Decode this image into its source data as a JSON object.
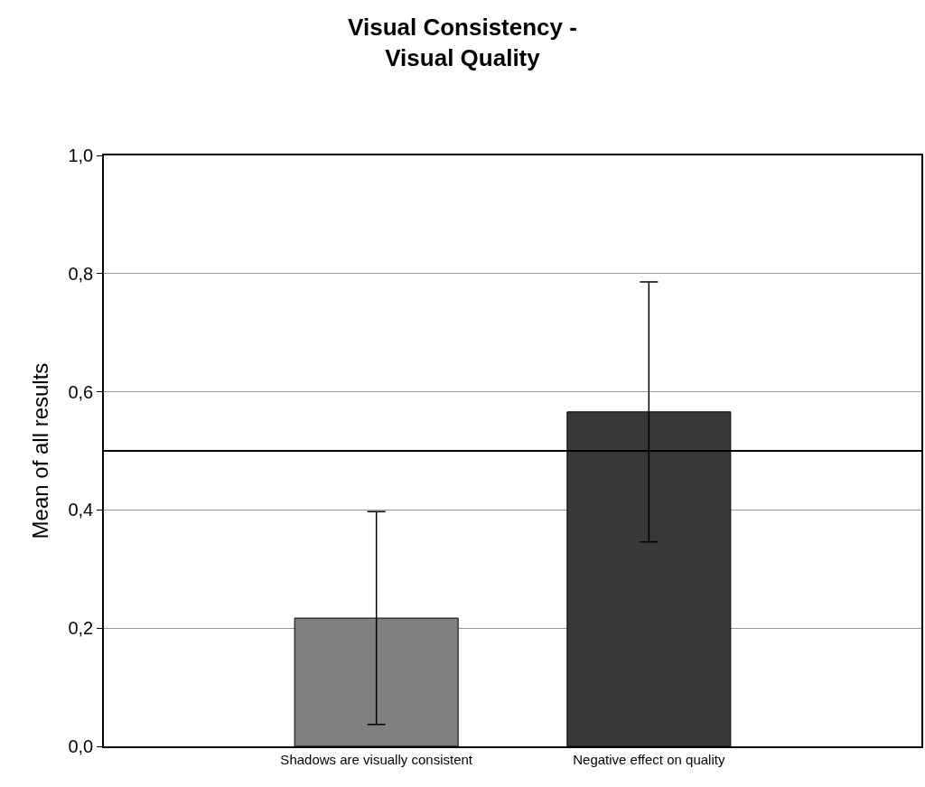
{
  "chart_data": {
    "type": "bar",
    "title": "Visual Consistency -\nVisual Quality",
    "ylabel": "Mean of all results",
    "categories": [
      "Shadows are visually consistent",
      "Negative effect on quality"
    ],
    "values": [
      0.217,
      0.566
    ],
    "colors": [
      "#808080",
      "#383838"
    ],
    "errors": [
      0.18,
      0.22
    ],
    "ylim": [
      0,
      1
    ],
    "yticks": [
      {
        "value": 0,
        "label": "0,0"
      },
      {
        "value": 0.2,
        "label": "0,2"
      },
      {
        "value": 0.4,
        "label": "0,4"
      },
      {
        "value": 0.6,
        "label": "0,6"
      },
      {
        "value": 0.8,
        "label": "0,8"
      },
      {
        "value": 1,
        "label": "1,0"
      }
    ],
    "ref_lines": [
      {
        "axis": "y",
        "value": 0.5,
        "color": "#000000",
        "line_style": "solid"
      }
    ],
    "grid": "y"
  }
}
